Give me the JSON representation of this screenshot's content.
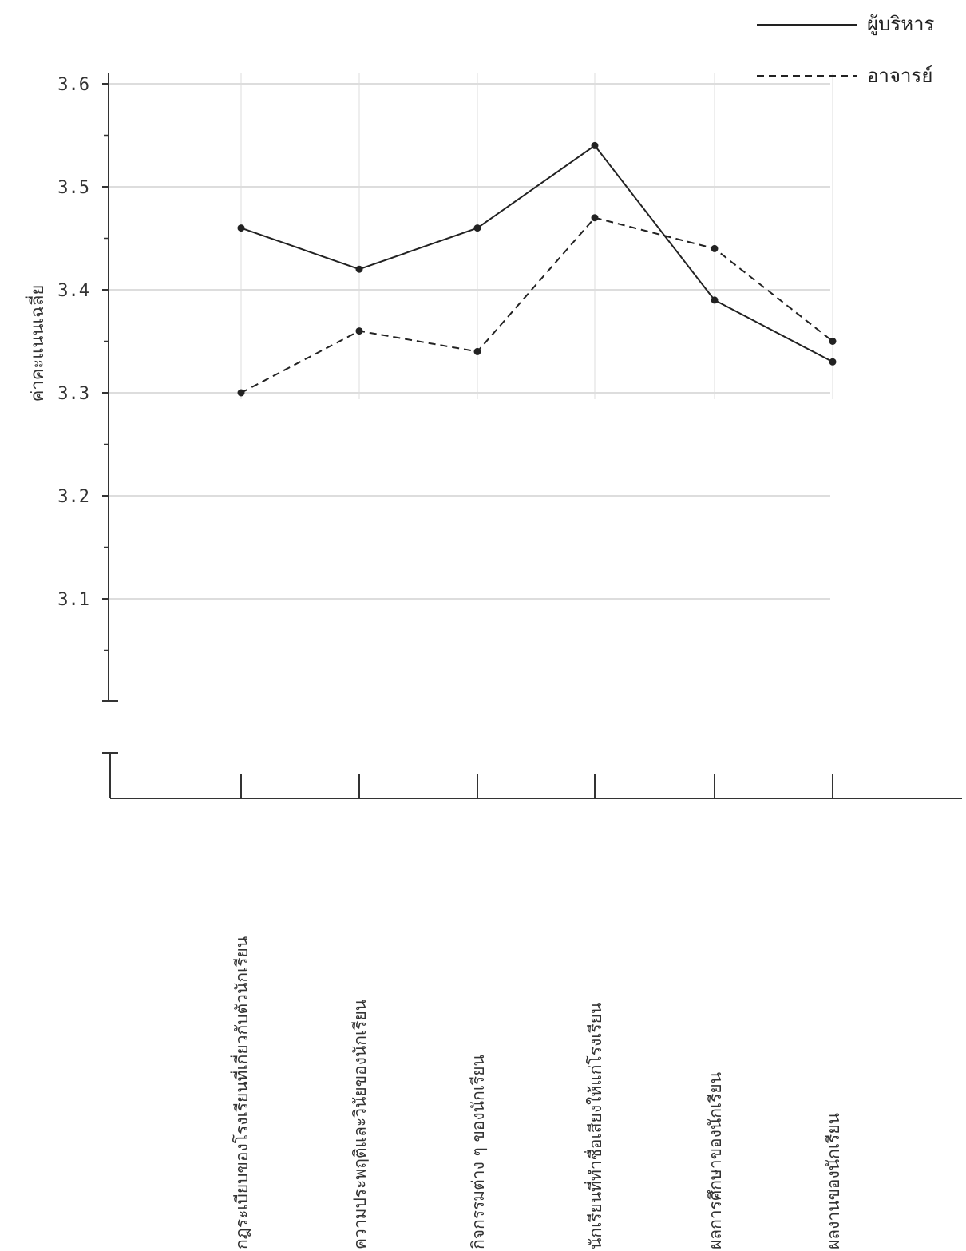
{
  "chart_data": {
    "type": "line",
    "title": "",
    "ylabel": "ค่าคะแนนเฉลี่ย",
    "xlabel": "",
    "ylim": [
      3.0,
      3.6
    ],
    "yticks": [
      3.1,
      3.2,
      3.3,
      3.4,
      3.5,
      3.6
    ],
    "ytick_labels": [
      "3.1",
      "3.2",
      "3.3",
      "3.4",
      "3.5",
      "3.6"
    ],
    "grid": true,
    "legend_position": "top-right",
    "categories": [
      "กฎระเบียบของโรงเรียนที่เกี่ยวกับตัวนักเรียน",
      "ความประพฤติและวินัยของนักเรียน",
      "กิจกรรมต่าง ๆ ของนักเรียน",
      "นักเรียนที่ทำชื่อเสียงให้แก่โรงเรียน",
      "ผลการศึกษาของนักเรียน",
      "ผลงานของนักเรียน"
    ],
    "series": [
      {
        "name": "ผู้บริหาร",
        "style": "solid",
        "values": [
          3.46,
          3.42,
          3.46,
          3.54,
          3.39,
          3.33
        ]
      },
      {
        "name": "อาจารย์",
        "style": "dashed",
        "values": [
          3.3,
          3.36,
          3.34,
          3.47,
          3.44,
          3.35
        ]
      }
    ]
  }
}
